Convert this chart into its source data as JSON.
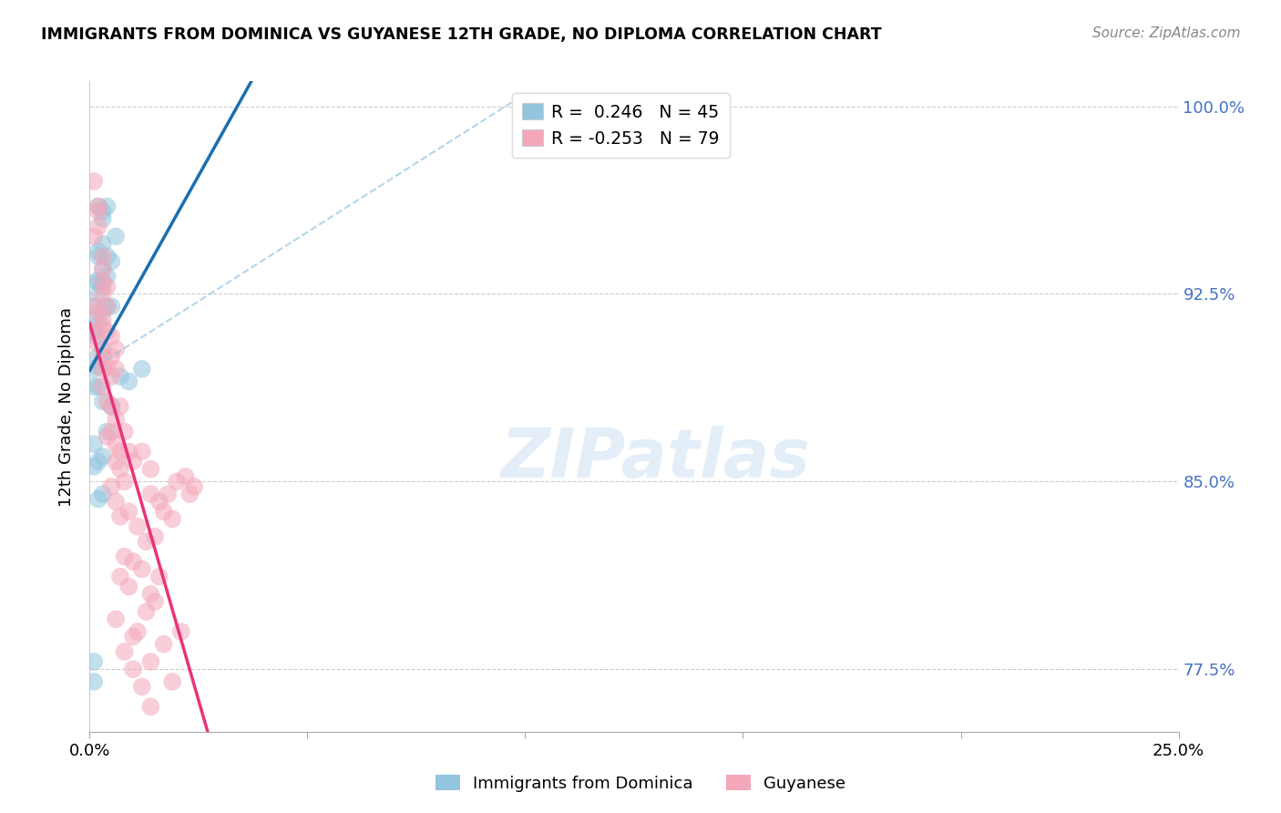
{
  "title": "IMMIGRANTS FROM DOMINICA VS GUYANESE 12TH GRADE, NO DIPLOMA CORRELATION CHART",
  "source": "Source: ZipAtlas.com",
  "yaxis_label": "12th Grade, No Diploma",
  "legend1_label": "Immigrants from Dominica",
  "legend2_label": "Guyanese",
  "r1": 0.246,
  "n1": 45,
  "r2": -0.253,
  "n2": 79,
  "color_blue": "#92c5de",
  "color_pink": "#f4a7b9",
  "color_blue_line": "#1a6faf",
  "color_pink_line": "#e8337a",
  "color_dashed": "#92c5de",
  "watermark_text": "ZIPatlas",
  "blue_points_x": [
    0.1,
    0.2,
    0.3,
    0.1,
    0.2,
    0.3,
    0.1,
    0.2,
    0.3,
    0.15,
    0.2,
    0.3,
    0.1,
    0.2,
    0.1,
    0.2,
    0.3,
    0.4,
    0.3,
    0.4,
    0.3,
    0.2,
    0.15,
    0.2,
    0.3,
    0.4,
    0.5,
    0.4,
    0.5,
    0.6,
    0.2,
    0.1,
    0.3,
    0.1,
    0.2,
    0.3,
    0.4,
    0.1,
    0.2,
    0.3,
    0.5,
    0.7,
    0.9,
    0.1,
    1.2
  ],
  "blue_points_y": [
    77.0,
    93.0,
    93.0,
    91.5,
    96.0,
    95.8,
    92.0,
    94.0,
    94.5,
    93.0,
    92.5,
    93.5,
    91.0,
    90.0,
    89.5,
    88.8,
    91.8,
    93.2,
    95.5,
    96.0,
    92.8,
    94.2,
    90.8,
    91.3,
    90.3,
    92.0,
    92.0,
    94.0,
    93.8,
    94.8,
    89.6,
    88.8,
    88.2,
    85.6,
    85.8,
    86.0,
    87.0,
    86.5,
    84.3,
    84.5,
    88.0,
    89.2,
    89.0,
    77.8,
    89.5
  ],
  "pink_points_x": [
    0.1,
    0.2,
    0.3,
    0.1,
    0.2,
    0.3,
    0.2,
    0.3,
    0.1,
    0.3,
    0.2,
    0.1,
    0.3,
    0.4,
    0.3,
    0.4,
    0.2,
    0.3,
    0.4,
    0.3,
    0.5,
    0.4,
    0.3,
    0.5,
    0.6,
    0.5,
    0.6,
    0.4,
    0.5,
    0.6,
    0.4,
    0.7,
    0.5,
    0.6,
    0.7,
    0.6,
    0.8,
    0.7,
    0.9,
    0.5,
    0.6,
    0.7,
    0.8,
    1.0,
    1.2,
    1.4,
    0.9,
    1.1,
    0.8,
    1.4,
    1.6,
    1.0,
    1.3,
    1.8,
    0.7,
    0.9,
    1.2,
    1.5,
    2.0,
    1.7,
    1.4,
    1.6,
    1.9,
    2.2,
    0.6,
    1.0,
    1.3,
    0.8,
    1.1,
    1.5,
    1.0,
    1.4,
    1.2,
    1.7,
    2.1,
    2.3,
    1.4,
    1.9,
    2.4
  ],
  "pink_points_y": [
    97.0,
    96.0,
    92.5,
    94.8,
    95.2,
    94.0,
    95.8,
    93.0,
    92.0,
    93.5,
    91.8,
    91.0,
    91.2,
    92.8,
    91.5,
    92.0,
    90.5,
    90.0,
    91.0,
    89.5,
    90.8,
    89.6,
    88.8,
    90.0,
    89.5,
    89.2,
    90.3,
    88.2,
    88.0,
    87.5,
    86.8,
    88.0,
    87.0,
    86.5,
    86.2,
    85.8,
    87.0,
    85.5,
    86.2,
    84.8,
    84.2,
    83.6,
    85.0,
    85.8,
    86.2,
    85.5,
    83.8,
    83.2,
    82.0,
    84.5,
    84.2,
    81.8,
    82.6,
    84.5,
    81.2,
    80.8,
    81.5,
    82.8,
    85.0,
    83.8,
    80.5,
    81.2,
    83.5,
    85.2,
    79.5,
    78.8,
    79.8,
    78.2,
    79.0,
    80.2,
    77.5,
    77.8,
    76.8,
    78.5,
    79.0,
    84.5,
    76.0,
    77.0,
    84.8
  ],
  "xlim": [
    0.0,
    25.0
  ],
  "ylim": [
    75.0,
    101.0
  ],
  "yticks": [
    77.5,
    85.0,
    92.5,
    100.0
  ],
  "ytick_labels": [
    "77.5%",
    "85.0%",
    "92.5%",
    "100.0%"
  ],
  "xticks": [
    0.0,
    5.0,
    10.0,
    15.0,
    20.0,
    25.0
  ],
  "xtick_labels": [
    "0.0%",
    "",
    "",
    "",
    "",
    "25.0%"
  ]
}
